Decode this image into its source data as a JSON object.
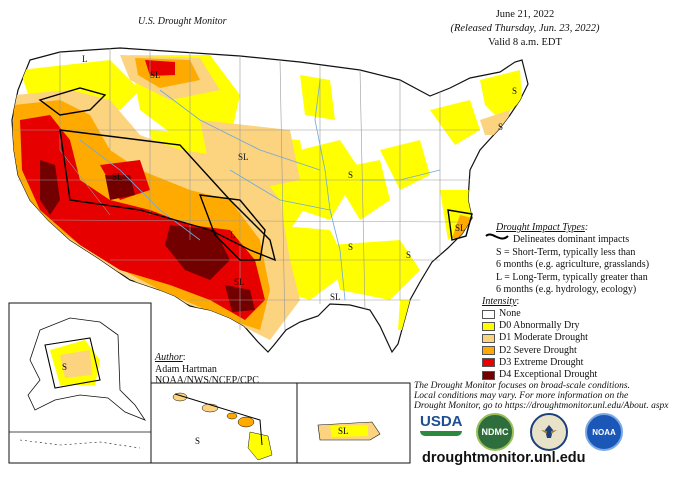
{
  "header": {
    "title": "U.S. Drought Monitor",
    "date": "June 21, 2022",
    "released": "(Released Thursday, Jun. 23, 2022)",
    "valid": "Valid 8 a.m. EDT"
  },
  "impact": {
    "title": "Drought Impact Types",
    "title_suffix": ":",
    "boundary_label": "Delineates dominant impacts",
    "short_term_1": "S = Short-Term, typically less than",
    "short_term_2": "6 months (e.g. agriculture, grasslands)",
    "long_term_1": "L = Long-Term, typically greater than",
    "long_term_2": "6 months (e.g. hydrology, ecology)"
  },
  "intensity": {
    "title": "Intensity",
    "title_suffix": ":",
    "items": [
      {
        "label": "None",
        "color": "#ffffff"
      },
      {
        "label": "D0 Abnormally Dry",
        "color": "#ffff00"
      },
      {
        "label": "D1 Moderate Drought",
        "color": "#fcd37f"
      },
      {
        "label": "D2 Severe Drought",
        "color": "#ffaa00"
      },
      {
        "label": "D3 Extreme Drought",
        "color": "#e60000"
      },
      {
        "label": "D4 Exceptional Drought",
        "color": "#730000"
      }
    ]
  },
  "author": {
    "title": "Author",
    "title_suffix": ":",
    "name": "Adam Hartman",
    "org": "NOAA/NWS/NCEP/CPC"
  },
  "disclaimer": {
    "line1": "The Drought Monitor focuses on broad-scale conditions.",
    "line2": "Local conditions may vary. For more information on the",
    "line3": "Drought Monitor, go to https://droughtmonitor.unl.edu/About. aspx"
  },
  "website": "droughtmonitor.unl.edu",
  "logos": {
    "usda": "USDA",
    "ndmc": "NDMC",
    "noaa": "NOAA"
  },
  "map_labels": {
    "L": "L",
    "S": "S",
    "SL": "SL"
  },
  "colors": {
    "none": "#ffffff",
    "d0": "#ffff00",
    "d1": "#fcd37f",
    "d2": "#ffaa00",
    "d3": "#e60000",
    "d4": "#730000",
    "state_line": "#9a9a9a",
    "water": "#6fa8dc"
  }
}
